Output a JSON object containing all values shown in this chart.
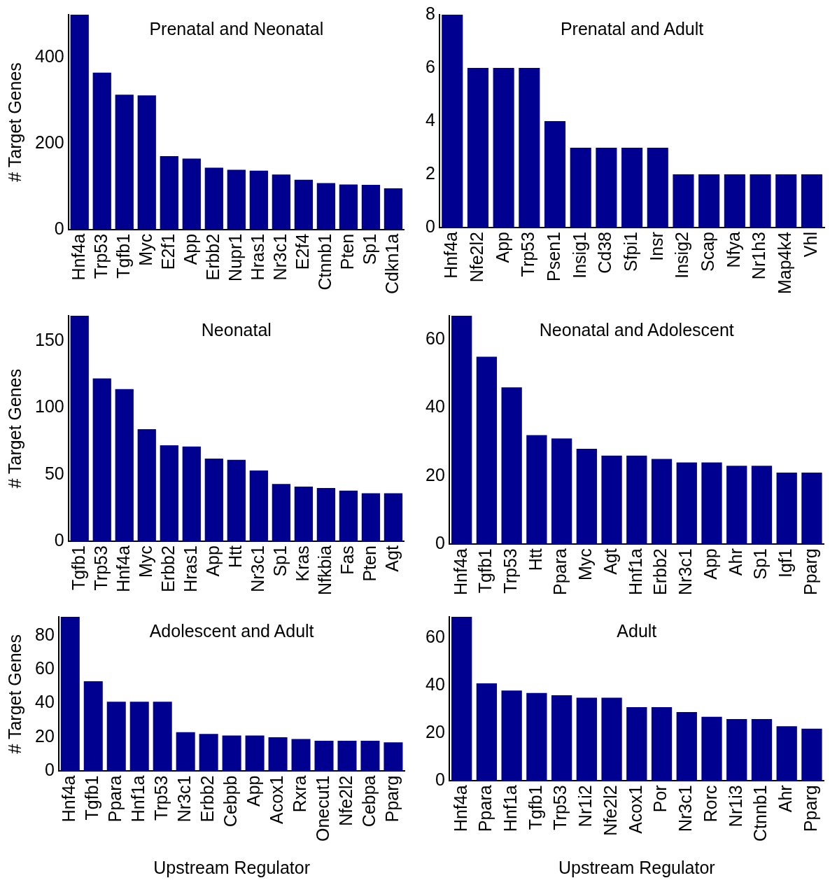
{
  "chart_data": [
    {
      "type": "bar",
      "title": "Prenatal and Neonatal",
      "ylabel": "# Target Genes",
      "categories": [
        "Hnf4a",
        "Trp53",
        "Tgfb1",
        "Myc",
        "E2f1",
        "App",
        "Erbb2",
        "Nupr1",
        "Hras1",
        "Nr3c1",
        "E2f4",
        "Ctnnb1",
        "Pten",
        "Sp1",
        "Cdkn1a"
      ],
      "values": [
        500,
        365,
        314,
        312,
        171,
        165,
        144,
        139,
        137,
        128,
        116,
        108,
        105,
        104,
        96
      ],
      "color": "#000090",
      "ylim": [
        0,
        500
      ],
      "yticks": [
        0,
        200,
        400
      ],
      "grid": false
    },
    {
      "type": "bar",
      "title": "Prenatal and Adult",
      "categories": [
        "Hnf4a",
        "Nfe2l2",
        "App",
        "Trp53",
        "Psen1",
        "Insig1",
        "Cd38",
        "Sfpi1",
        "Insr",
        "Insig2",
        "Scap",
        "Nfya",
        "Nr1h3",
        "Map4k4",
        "Vhl"
      ],
      "values": [
        8,
        6,
        6,
        6,
        4,
        3,
        3,
        3,
        3,
        2,
        2,
        2,
        2,
        2,
        2
      ],
      "color": "#000090",
      "ylim": [
        0,
        8
      ],
      "yticks": [
        0,
        2,
        4,
        6,
        8
      ],
      "grid": false
    },
    {
      "type": "bar",
      "title": "Neonatal",
      "ylabel": "# Target Genes",
      "categories": [
        "Tgfb1",
        "Trp53",
        "Hnf4a",
        "Myc",
        "Erbb2",
        "Hras1",
        "App",
        "Htt",
        "Nr3c1",
        "Sp1",
        "Kras",
        "Nfkbia",
        "Fas",
        "Pten",
        "Agt"
      ],
      "values": [
        169,
        122,
        114,
        84,
        72,
        71,
        62,
        61,
        53,
        43,
        41,
        40,
        38,
        36,
        36
      ],
      "color": "#000090",
      "ylim": [
        0,
        169
      ],
      "yticks": [
        0,
        50,
        100,
        150
      ],
      "grid": false
    },
    {
      "type": "bar",
      "title": "Neonatal and Adolescent",
      "categories": [
        "Hnf4a",
        "Tgfb1",
        "Trp53",
        "Htt",
        "Ppara",
        "Myc",
        "Agt",
        "Hnf1a",
        "Erbb2",
        "Nr3c1",
        "App",
        "Ahr",
        "Sp1",
        "Igf1",
        "Pparg"
      ],
      "values": [
        67,
        55,
        46,
        32,
        31,
        28,
        26,
        26,
        25,
        24,
        24,
        23,
        23,
        21,
        21
      ],
      "color": "#000090",
      "ylim": [
        0,
        67
      ],
      "yticks": [
        0,
        20,
        40,
        60
      ],
      "grid": false
    },
    {
      "type": "bar",
      "title": "Adolescent and Adult",
      "ylabel": "# Target Genes",
      "xlabel": "Upstream Regulator",
      "categories": [
        "Hnf4a",
        "Tgfb1",
        "Ppara",
        "Hnf1a",
        "Trp53",
        "Nr3c1",
        "Erbb2",
        "Cebpb",
        "App",
        "Acox1",
        "Rxra",
        "Onecut1",
        "Nfe2l2",
        "Cebpa",
        "Pparg"
      ],
      "values": [
        91,
        53,
        41,
        41,
        41,
        23,
        22,
        21,
        21,
        20,
        19,
        18,
        18,
        18,
        17
      ],
      "color": "#000090",
      "ylim": [
        0,
        91
      ],
      "yticks": [
        0,
        20,
        40,
        60,
        80
      ],
      "grid": false
    },
    {
      "type": "bar",
      "title": "Adult",
      "xlabel": "Upstream Regulator",
      "categories": [
        "Hnf4a",
        "Ppara",
        "Hnf1a",
        "Tgfb1",
        "Trp53",
        "Nr1i2",
        "Nfe2l2",
        "Acox1",
        "Por",
        "Nr3c1",
        "Rorc",
        "Nr1i3",
        "Ctnnb1",
        "Ahr",
        "Pparg"
      ],
      "values": [
        69,
        41,
        38,
        37,
        36,
        35,
        35,
        31,
        31,
        29,
        27,
        26,
        26,
        23,
        22
      ],
      "color": "#000090",
      "ylim": [
        0,
        69
      ],
      "yticks": [
        0,
        20,
        40,
        60
      ],
      "grid": false
    }
  ]
}
